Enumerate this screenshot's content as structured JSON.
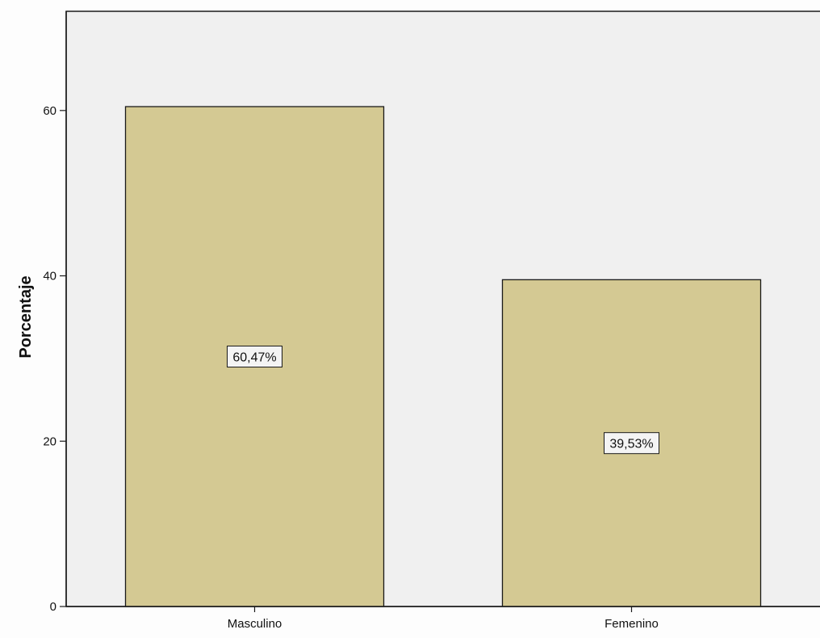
{
  "chart_data": {
    "type": "bar",
    "categories": [
      "Masculino",
      "Femenino"
    ],
    "values": [
      60.47,
      39.53
    ],
    "data_labels": [
      "60,47%",
      "39,53%"
    ],
    "ylabel": "Porcentaje",
    "xlabel": "",
    "ylim": [
      0,
      72
    ],
    "yticks": [
      0,
      20,
      40,
      60
    ],
    "ytick_labels": [
      "0",
      "20",
      "40",
      "60"
    ],
    "grid": false,
    "legend": "none",
    "colors": {
      "plot_background": "#f0f0f0",
      "bar_fill": "#d4c993",
      "bar_stroke": "#1a1a1a",
      "label_box_fill": "#f4f4f4",
      "axis": "#1a1a1a",
      "page_background": "#fdfdfd"
    }
  }
}
